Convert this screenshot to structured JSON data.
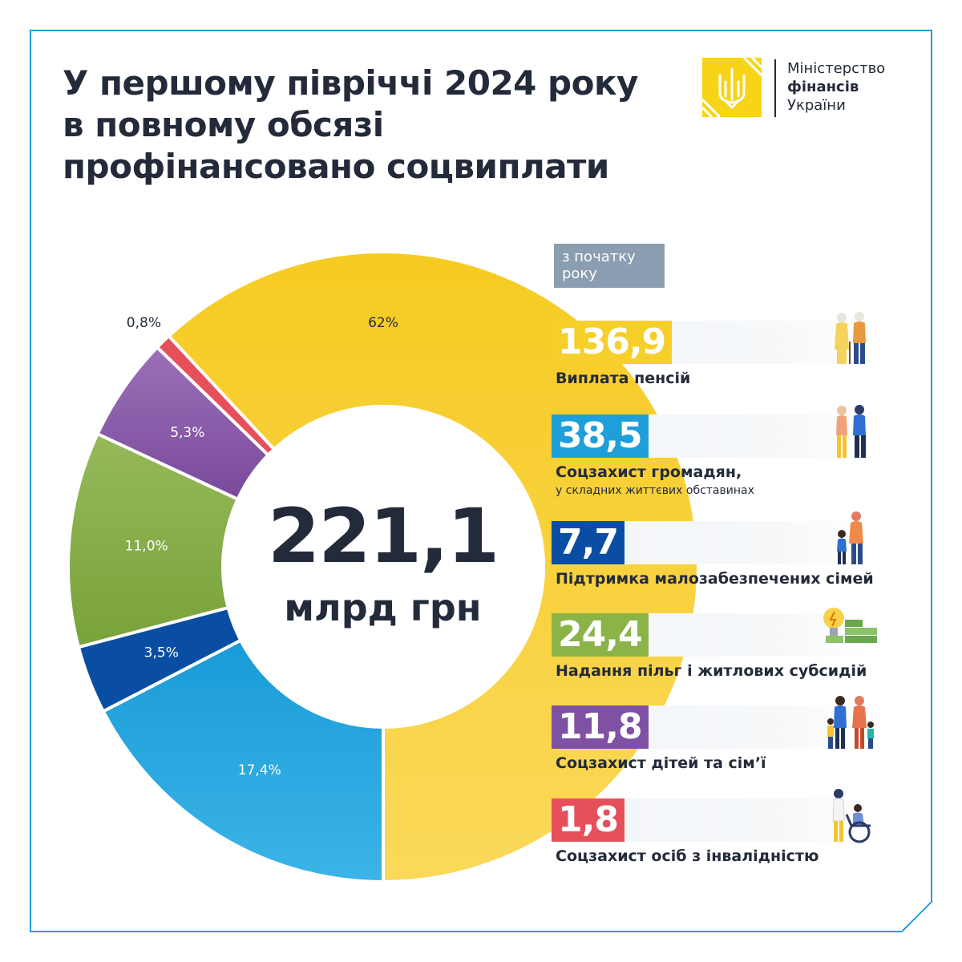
{
  "title_lines": [
    "У першому півріччі 2024 року",
    "в повному обсязі",
    "профінансовано соцвиплати"
  ],
  "logo": {
    "line1": "Міністерство",
    "line2": "фінансів",
    "line3": "України"
  },
  "center": {
    "value": "221,1",
    "unit": "млрд грн"
  },
  "period_badge": "з початку року",
  "items": [
    {
      "value": "136,9",
      "label": "Виплата пенсій",
      "sublabel": "",
      "color": "#f7cf2b",
      "icon": "elderly-couple-icon"
    },
    {
      "value": "38,5",
      "label": "Соцзахист громадян,",
      "sublabel": "у складних життєвих обставинах",
      "color": "#1f9fd9",
      "icon": "supporting-couple-icon"
    },
    {
      "value": "7,7",
      "label": "Підтримка малозабезпечених сімей",
      "sublabel": "",
      "color": "#0a4ea3",
      "icon": "parent-child-icon"
    },
    {
      "value": "24,4",
      "label": "Надання пільг і житлових субсидій",
      "sublabel": "",
      "color": "#8bb448",
      "icon": "lightbulb-money-icon"
    },
    {
      "value": "11,8",
      "label": "Соцзахист дітей та сім’ї",
      "sublabel": "",
      "color": "#7f51a2",
      "icon": "family-icon"
    },
    {
      "value": "1,8",
      "label": "Соцзахист осіб з інвалідністю",
      "sublabel": "",
      "color": "#e5505b",
      "icon": "wheelchair-icon"
    }
  ],
  "chart_data": {
    "type": "pie",
    "categories": [
      "Виплата пенсій",
      "Соцзахист громадян, у складних життєвих обставинах",
      "Підтримка малозабезпечених сімей",
      "Надання пільг і житлових субсидій",
      "Соцзахист дітей та сім’ї",
      "Соцзахист осіб з інвалідністю"
    ],
    "values": [
      136.9,
      38.5,
      7.7,
      24.4,
      11.8,
      1.8
    ],
    "percent_labels": [
      "62%",
      "17,4%",
      "3,5%",
      "11,0%",
      "5,3%",
      "0,8%"
    ],
    "percents": [
      62,
      17.4,
      3.5,
      11.0,
      5.3,
      0.8
    ],
    "colors": [
      "#f7cf2b",
      "#2ea8e0",
      "#0a4ea3",
      "#88ad48",
      "#8657a9",
      "#e5505b"
    ],
    "total": 221.1,
    "unit": "млрд грн"
  },
  "colors": {
    "frame": "#1f9fd9",
    "text": "#232b3a",
    "badge": "#8a9db1",
    "logo_yellow": "#f7d417"
  }
}
